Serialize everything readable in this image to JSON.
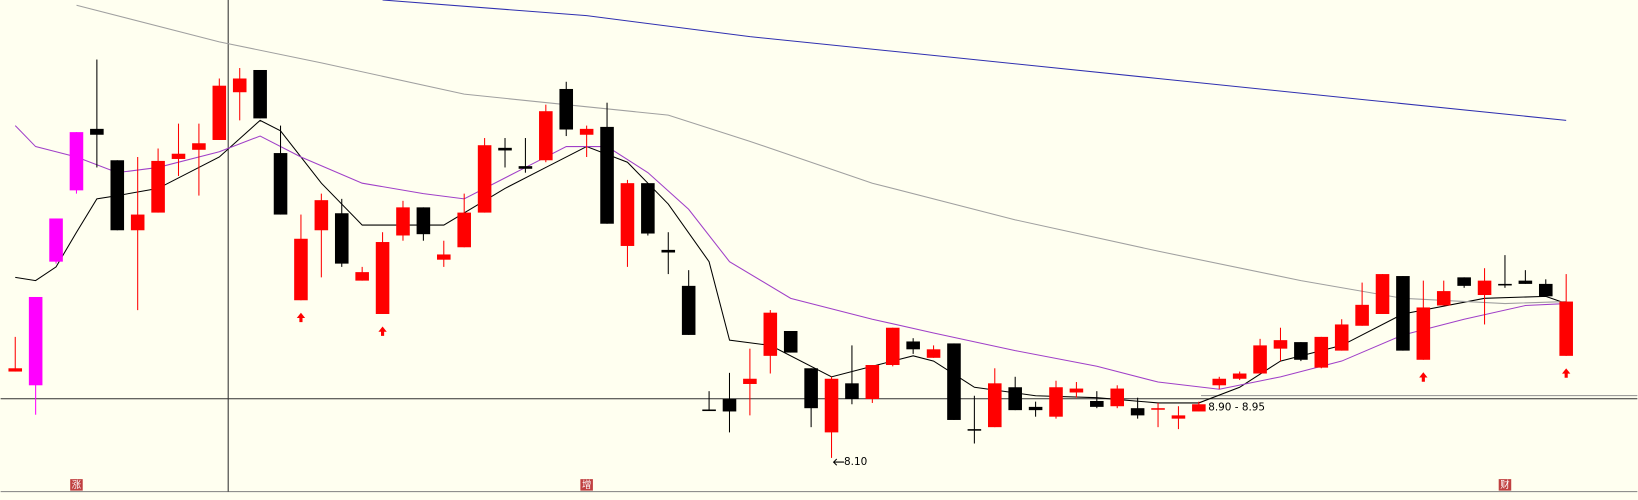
{
  "chart_data": {
    "type": "candlestick",
    "ylim": [
      7.6,
      15.1
    ],
    "up_color": "#ff0000",
    "down_color": "#000000",
    "highlight": [
      1,
      2,
      3
    ],
    "highlight_color": "#ff00ff",
    "signals": [
      14,
      18,
      69,
      76
    ],
    "signal_color": "#ff0000",
    "open": [
      9.42,
      9.21,
      11.1,
      12.19,
      13.13,
      12.65,
      11.58,
      11.85,
      12.67,
      12.81,
      12.96,
      13.69,
      14.03,
      12.76,
      10.51,
      11.58,
      11.84,
      10.81,
      10.3,
      11.5,
      11.93,
      11.13,
      11.32,
      11.85,
      12.84,
      12.56,
      12.65,
      13.74,
      13.04,
      13.16,
      11.34,
      12.3,
      11.28,
      10.73,
      8.84,
      9.0,
      9.23,
      9.66,
      10.04,
      9.47,
      8.49,
      9.24,
      9.0,
      9.52,
      9.88,
      9.63,
      9.85,
      8.54,
      8.57,
      9.18,
      8.88,
      8.73,
      9.1,
      8.97,
      8.89,
      8.86,
      8.84,
      8.7,
      8.81,
      9.21,
      9.31,
      9.39,
      9.77,
      9.87,
      9.48,
      9.74,
      10.12,
      10.3,
      10.88,
      9.6,
      10.43,
      10.86,
      10.59,
      10.76,
      10.81,
      10.76,
      9.66
    ],
    "high": [
      9.95,
      10.56,
      11.76,
      13.08,
      14.19,
      12.65,
      12.7,
      12.83,
      13.21,
      13.21,
      13.9,
      14.06,
      14.03,
      13.18,
      11.82,
      12.14,
      12.06,
      11.02,
      11.55,
      12.03,
      11.93,
      11.42,
      12.14,
      12.99,
      12.99,
      12.99,
      13.5,
      13.85,
      13.18,
      13.53,
      12.35,
      12.3,
      11.55,
      10.97,
      9.12,
      9.4,
      9.77,
      10.36,
      10.04,
      9.47,
      9.34,
      9.82,
      9.52,
      10.09,
      9.93,
      9.82,
      9.85,
      9.05,
      9.47,
      9.34,
      8.96,
      9.28,
      9.26,
      9.12,
      9.21,
      9.02,
      8.94,
      8.89,
      8.96,
      9.34,
      9.42,
      9.92,
      10.09,
      9.87,
      9.95,
      10.22,
      10.78,
      10.91,
      10.88,
      10.81,
      10.81,
      10.86,
      11.0,
      11.2,
      10.97,
      10.83,
      10.91
    ],
    "low": [
      9.42,
      8.76,
      11.07,
      12.14,
      12.54,
      11.58,
      10.36,
      11.85,
      12.41,
      12.11,
      12.96,
      13.26,
      13.29,
      11.82,
      10.51,
      10.86,
      11.02,
      10.81,
      10.3,
      11.42,
      11.42,
      11.02,
      11.32,
      11.85,
      12.54,
      12.46,
      12.62,
      13.02,
      12.7,
      11.68,
      11.02,
      11.5,
      10.91,
      9.98,
      8.83,
      8.49,
      8.75,
      9.39,
      9.71,
      8.57,
      8.1,
      8.92,
      8.94,
      9.5,
      9.69,
      9.63,
      8.68,
      8.32,
      8.57,
      8.83,
      8.73,
      8.7,
      9.02,
      8.86,
      8.86,
      8.7,
      8.57,
      8.54,
      8.81,
      9.15,
      9.29,
      9.39,
      9.58,
      9.58,
      9.47,
      9.74,
      10.12,
      10.3,
      9.74,
      9.6,
      10.43,
      10.7,
      10.14,
      10.7,
      10.76,
      10.57,
      9.66
    ],
    "close": [
      9.47,
      10.56,
      11.76,
      13.08,
      13.04,
      11.58,
      11.82,
      12.64,
      12.75,
      12.91,
      13.79,
      13.9,
      13.29,
      11.82,
      11.45,
      12.04,
      11.07,
      10.94,
      11.4,
      11.93,
      11.52,
      11.21,
      11.85,
      12.88,
      12.8,
      12.52,
      13.4,
      13.12,
      13.13,
      11.68,
      12.3,
      11.53,
      11.24,
      9.98,
      8.83,
      8.81,
      9.31,
      10.32,
      9.71,
      8.86,
      9.31,
      9.0,
      9.52,
      10.09,
      9.76,
      9.76,
      8.68,
      8.52,
      9.24,
      8.83,
      8.83,
      9.18,
      9.16,
      8.88,
      9.16,
      8.75,
      8.86,
      8.75,
      8.92,
      9.31,
      9.39,
      9.82,
      9.9,
      9.6,
      9.95,
      10.14,
      10.44,
      10.91,
      9.74,
      10.4,
      10.65,
      10.73,
      10.81,
      10.75,
      10.76,
      10.57,
      10.49
    ],
    "series": [
      {
        "color": "#000000",
        "x": [
          0,
          1,
          2,
          3,
          4,
          5,
          7,
          10,
          12,
          13,
          15,
          17,
          19,
          21,
          24,
          26,
          28,
          30,
          32,
          34,
          35,
          37,
          40,
          42,
          44,
          45,
          47,
          50,
          53,
          56,
          58,
          60,
          62,
          65,
          68,
          72,
          75,
          76
        ],
        "values": [
          10.86,
          10.81,
          11.02,
          11.55,
          12.06,
          12.11,
          12.22,
          12.7,
          13.26,
          13.1,
          12.3,
          11.66,
          11.66,
          11.66,
          12.22,
          12.54,
          12.86,
          12.62,
          11.98,
          11.1,
          9.9,
          9.82,
          9.34,
          9.5,
          9.66,
          9.58,
          9.18,
          9.05,
          9.02,
          8.94,
          8.94,
          9.18,
          9.58,
          9.82,
          10.3,
          10.54,
          10.57,
          10.46
        ]
      },
      {
        "color": "#a040c8",
        "x": [
          0,
          1,
          2,
          3,
          5,
          7,
          10,
          12,
          14,
          17,
          20,
          22,
          25,
          27,
          29,
          31,
          33,
          35,
          38,
          42,
          45,
          49,
          53,
          56,
          59,
          62,
          65,
          68,
          71,
          74,
          76
        ],
        "values": [
          13.18,
          12.86,
          12.78,
          12.7,
          12.46,
          12.54,
          12.78,
          13.02,
          12.7,
          12.3,
          12.14,
          12.06,
          12.54,
          12.86,
          12.86,
          12.46,
          11.9,
          11.1,
          10.54,
          10.22,
          10.01,
          9.74,
          9.5,
          9.26,
          9.15,
          9.34,
          9.58,
          9.98,
          10.22,
          10.43,
          10.46
        ]
      },
      {
        "color": "#a0a0a0",
        "x": [
          3,
          10,
          15,
          22,
          27,
          32,
          36,
          42,
          49,
          56,
          63,
          68,
          73,
          76
        ],
        "values": [
          15.02,
          14.46,
          14.14,
          13.66,
          13.5,
          13.34,
          12.94,
          12.3,
          11.74,
          11.26,
          10.81,
          10.54,
          10.46,
          10.49
        ]
      },
      {
        "color": "#3030b0",
        "x": [
          18,
          28,
          36,
          46,
          56,
          66,
          76
        ],
        "values": [
          15.1,
          14.86,
          14.54,
          14.22,
          13.9,
          13.58,
          13.26
        ]
      }
    ],
    "annotations": [
      {
        "label": "8.10",
        "index": 40,
        "at": "low"
      },
      {
        "label": "8.90 - 8.95",
        "index": 58,
        "at": "close"
      }
    ],
    "markers": [
      {
        "label": "涨",
        "index": 3
      },
      {
        "label": "增",
        "index": 28
      },
      {
        "label": "财",
        "index": 73
      }
    ]
  }
}
